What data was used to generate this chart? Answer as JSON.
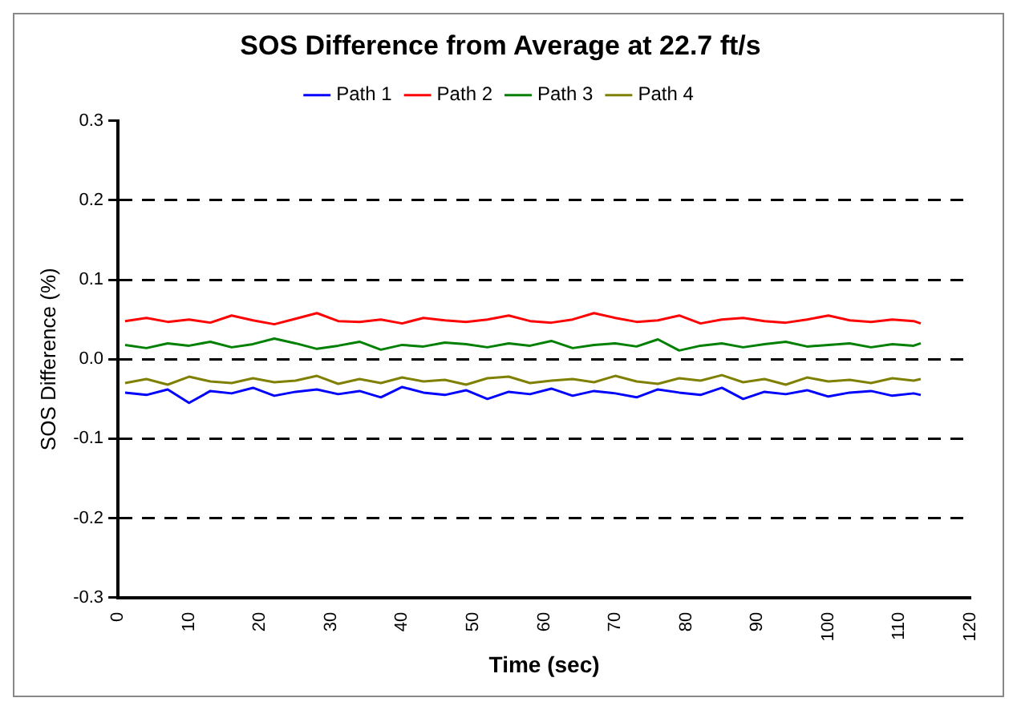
{
  "chart_data": {
    "type": "line",
    "title": "SOS Difference from Average at 22.7 ft/s",
    "xlabel": "Time (sec)",
    "ylabel": "SOS Difference (%)",
    "x": [
      1,
      4,
      7,
      10,
      13,
      16,
      19,
      22,
      25,
      28,
      31,
      34,
      37,
      40,
      43,
      46,
      49,
      52,
      55,
      58,
      61,
      64,
      67,
      70,
      73,
      76,
      79,
      82,
      85,
      88,
      91,
      94,
      97,
      100,
      103,
      106,
      109,
      112,
      113
    ],
    "series": [
      {
        "name": "Path 1",
        "color": "#0000ff",
        "values": [
          -0.042,
          -0.045,
          -0.038,
          -0.055,
          -0.04,
          -0.043,
          -0.036,
          -0.046,
          -0.041,
          -0.038,
          -0.044,
          -0.04,
          -0.048,
          -0.035,
          -0.042,
          -0.045,
          -0.039,
          -0.05,
          -0.041,
          -0.044,
          -0.037,
          -0.046,
          -0.04,
          -0.043,
          -0.048,
          -0.038,
          -0.042,
          -0.045,
          -0.036,
          -0.05,
          -0.041,
          -0.044,
          -0.039,
          -0.047,
          -0.042,
          -0.04,
          -0.046,
          -0.043,
          -0.045
        ]
      },
      {
        "name": "Path 2",
        "color": "#ff0000",
        "values": [
          0.048,
          0.052,
          0.047,
          0.05,
          0.046,
          0.055,
          0.049,
          0.044,
          0.051,
          0.058,
          0.048,
          0.047,
          0.05,
          0.045,
          0.052,
          0.049,
          0.047,
          0.05,
          0.055,
          0.048,
          0.046,
          0.05,
          0.058,
          0.052,
          0.047,
          0.049,
          0.055,
          0.045,
          0.05,
          0.052,
          0.048,
          0.046,
          0.05,
          0.055,
          0.049,
          0.047,
          0.05,
          0.048,
          0.045
        ]
      },
      {
        "name": "Path 3",
        "color": "#008000",
        "values": [
          0.018,
          0.014,
          0.02,
          0.017,
          0.022,
          0.015,
          0.019,
          0.026,
          0.02,
          0.013,
          0.017,
          0.022,
          0.012,
          0.018,
          0.016,
          0.021,
          0.019,
          0.015,
          0.02,
          0.017,
          0.023,
          0.014,
          0.018,
          0.02,
          0.016,
          0.025,
          0.011,
          0.017,
          0.02,
          0.015,
          0.019,
          0.022,
          0.016,
          0.018,
          0.02,
          0.015,
          0.019,
          0.017,
          0.02
        ]
      },
      {
        "name": "Path 4",
        "color": "#808000",
        "values": [
          -0.03,
          -0.025,
          -0.032,
          -0.022,
          -0.028,
          -0.03,
          -0.024,
          -0.029,
          -0.027,
          -0.021,
          -0.031,
          -0.025,
          -0.03,
          -0.023,
          -0.028,
          -0.026,
          -0.032,
          -0.024,
          -0.022,
          -0.03,
          -0.027,
          -0.025,
          -0.029,
          -0.021,
          -0.028,
          -0.031,
          -0.024,
          -0.027,
          -0.02,
          -0.029,
          -0.025,
          -0.032,
          -0.023,
          -0.028,
          -0.026,
          -0.03,
          -0.024,
          -0.027,
          -0.025
        ]
      }
    ],
    "xlim": [
      0,
      120
    ],
    "xticks": [
      0,
      10,
      20,
      30,
      40,
      50,
      60,
      70,
      80,
      90,
      100,
      110,
      120
    ],
    "ylim": [
      -0.3,
      0.3
    ],
    "yticks": [
      {
        "value": -0.3,
        "label": "-0.3"
      },
      {
        "value": -0.2,
        "label": "-0.2"
      },
      {
        "value": -0.1,
        "label": "-0.1"
      },
      {
        "value": 0,
        "label": "0.0"
      },
      {
        "value": 0.1,
        "label": "0.1"
      },
      {
        "value": 0.2,
        "label": "0.2"
      },
      {
        "value": 0.3,
        "label": "0.3"
      }
    ],
    "grid": "y",
    "legend": "top",
    "marker": "none",
    "line_style": "solid"
  }
}
